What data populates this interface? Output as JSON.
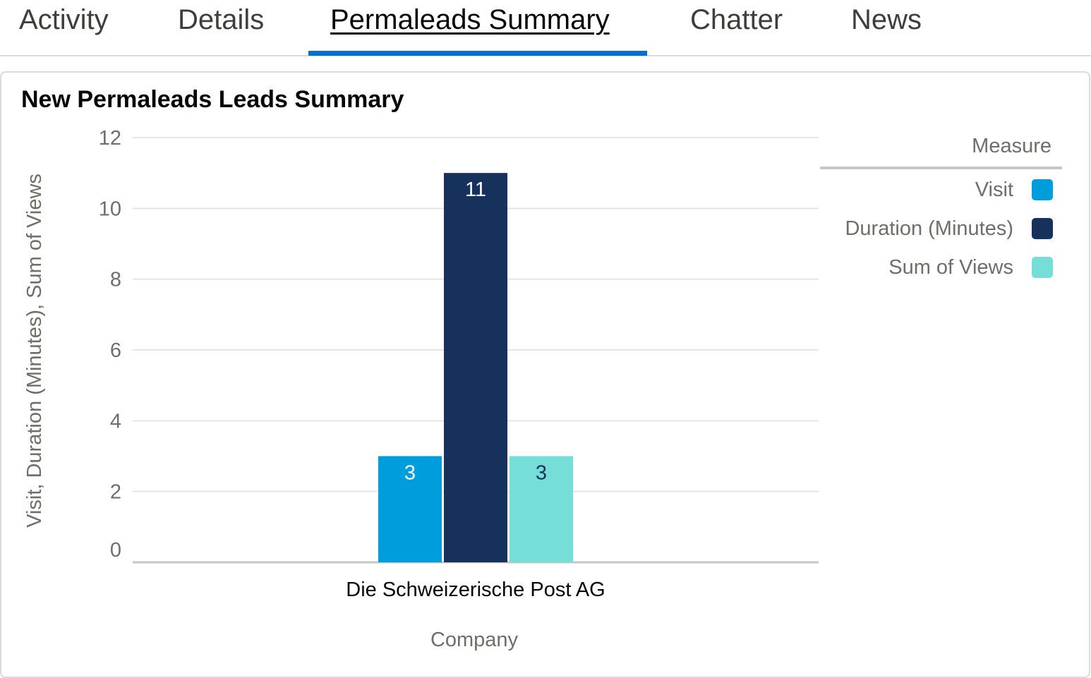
{
  "tabs": [
    {
      "label": "Activity",
      "active": false
    },
    {
      "label": "Details",
      "active": false
    },
    {
      "label": "Permaleads Summary",
      "active": true
    },
    {
      "label": "Chatter",
      "active": false
    },
    {
      "label": "News",
      "active": false
    }
  ],
  "card": {
    "title": "New Permaleads Leads Summary"
  },
  "colors": {
    "visit": "#009ddc",
    "duration": "#16325c",
    "views": "#76ded9",
    "active_tab": "#0070d2"
  },
  "chart_data": {
    "type": "bar",
    "title": "New Permaleads Leads Summary",
    "xlabel": "Company",
    "ylabel": "Visit, Duration (Minutes), Sum of Views",
    "categories": [
      "Die Schweizerische Post AG"
    ],
    "series": [
      {
        "name": "Visit",
        "values": [
          3
        ],
        "color": "#009ddc",
        "label_color": "#ffffff"
      },
      {
        "name": "Duration (Minutes)",
        "values": [
          11
        ],
        "color": "#16325c",
        "label_color": "#ffffff"
      },
      {
        "name": "Sum of Views",
        "values": [
          3
        ],
        "color": "#76ded9",
        "label_color": "#16325c"
      }
    ],
    "ylim": [
      0,
      12
    ],
    "yticks": [
      0,
      2,
      4,
      6,
      8,
      10,
      12
    ],
    "grid": true,
    "legend": {
      "title": "Measure",
      "position": "right"
    }
  }
}
